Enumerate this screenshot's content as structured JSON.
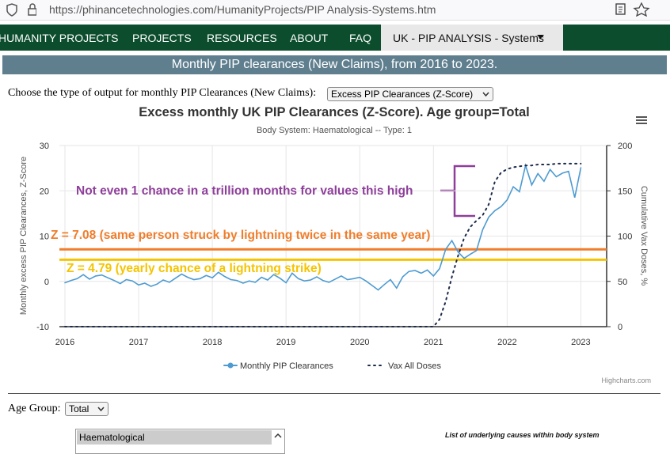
{
  "browser": {
    "url": "https://phinancetechnologies.com/HumanityProjects/PIP Analysis-Systems.htm"
  },
  "nav": {
    "items": [
      "HUMANITY PROJECTS",
      "PROJECTS",
      "RESOURCES",
      "ABOUT",
      "FAQ"
    ],
    "active": "UK - PIP ANALYSIS - Systems"
  },
  "banner": "Monthly PIP clearances (New Claims), from 2016 to 2023.",
  "output_label": "Choose the type of output for monthly PIP Clearances (New Claims):",
  "output_select": "Excess PIP Clearances (Z-Score)",
  "chart_data": {
    "type": "line",
    "title": "Excess monthly UK PIP Clearances (Z-Score). Age group=Total",
    "subtitle": "Body System: Haematological -- Type: 1",
    "ylabel": "Monthly excess PIP Clearances, Z-Score",
    "y2label": "Cumulative Vax Doses, %",
    "credits": "Highcharts.com",
    "grid": true,
    "xlim": [
      2015.925,
      2023.35
    ],
    "xticks": [
      2016,
      2017,
      2018,
      2019,
      2020,
      2021,
      2022,
      2023
    ],
    "ylim": [
      -10,
      30
    ],
    "yticks": [
      -10,
      0,
      10,
      20,
      30
    ],
    "y2lim": [
      0,
      200
    ],
    "y2ticks": [
      0,
      50,
      100,
      150,
      200
    ],
    "x": [
      2016,
      2016.083,
      2016.167,
      2016.25,
      2016.333,
      2016.417,
      2016.5,
      2016.583,
      2016.667,
      2016.75,
      2016.833,
      2016.917,
      2017,
      2017.083,
      2017.167,
      2017.25,
      2017.333,
      2017.417,
      2017.5,
      2017.583,
      2017.667,
      2017.75,
      2017.833,
      2017.917,
      2018,
      2018.083,
      2018.167,
      2018.25,
      2018.333,
      2018.417,
      2018.5,
      2018.583,
      2018.667,
      2018.75,
      2018.833,
      2018.917,
      2019,
      2019.083,
      2019.167,
      2019.25,
      2019.333,
      2019.417,
      2019.5,
      2019.583,
      2019.667,
      2019.75,
      2019.833,
      2019.917,
      2020,
      2020.083,
      2020.167,
      2020.25,
      2020.333,
      2020.417,
      2020.5,
      2020.583,
      2020.667,
      2020.75,
      2020.833,
      2020.917,
      2021,
      2021.083,
      2021.167,
      2021.25,
      2021.333,
      2021.417,
      2021.5,
      2021.583,
      2021.667,
      2021.75,
      2021.833,
      2021.917,
      2022,
      2022.083,
      2022.167,
      2022.25,
      2022.333,
      2022.417,
      2022.5,
      2022.583,
      2022.667,
      2022.75,
      2022.833,
      2022.917,
      2023
    ],
    "series": [
      {
        "name": "Monthly PIP Clearances",
        "color": "#4d9bd1",
        "values": [
          -0.3,
          0.2,
          0.6,
          1.5,
          0.5,
          1.2,
          1.4,
          0.8,
          0.2,
          -0.5,
          0.4,
          0.1,
          -0.8,
          -0.4,
          -1.1,
          -0.6,
          0.3,
          -0.2,
          0.7,
          1.6,
          0.9,
          0.4,
          0.6,
          1.3,
          0.8,
          2.0,
          1.1,
          0.4,
          0.2,
          -0.4,
          0.1,
          -0.2,
          0.9,
          0.3,
          1.5,
          0.7,
          -0.3,
          1.8,
          0.6,
          0.1,
          0.3,
          1.0,
          0.2,
          -0.2,
          0.5,
          1.2,
          0.4,
          0.6,
          0.9,
          0.1,
          -0.9,
          -1.9,
          -0.7,
          0.4,
          -1.5,
          1.0,
          2.2,
          2.4,
          1.8,
          2.5,
          1.2,
          2.8,
          7.1,
          9.0,
          6.5,
          5.1,
          6.0,
          6.8,
          11.4,
          14.2,
          15.6,
          16.5,
          18.0,
          20.9,
          19.8,
          25.6,
          21.3,
          23.8,
          22.1,
          24.7,
          23.1,
          23.9,
          24.3,
          18.5,
          25.1
        ]
      },
      {
        "name": "Vax All Doses",
        "color": "#1c2b4a",
        "axis": "y2",
        "dash": "dotted",
        "values": [
          0,
          0,
          0,
          0,
          0,
          0,
          0,
          0,
          0,
          0,
          0,
          0,
          0,
          0,
          0,
          0,
          0,
          0,
          0,
          0,
          0,
          0,
          0,
          0,
          0,
          0,
          0,
          0,
          0,
          0,
          0,
          0,
          0,
          0,
          0,
          0,
          0,
          0,
          0,
          0,
          0,
          0,
          0,
          0,
          0,
          0,
          0,
          0,
          0,
          0,
          0,
          0,
          0,
          0,
          0,
          0,
          0,
          0,
          0,
          0,
          0,
          8,
          28,
          55,
          78,
          98,
          110,
          117,
          123,
          135,
          160,
          170,
          174,
          176,
          177,
          178,
          178,
          179,
          179,
          179,
          180,
          180,
          180,
          180,
          180
        ]
      }
    ],
    "annotations": [
      {
        "text": "Not even 1 chance in a trillion months for values this high",
        "color": "#8e3f9a"
      }
    ],
    "reference_lines": [
      {
        "value": 7.08,
        "label": "Z = 7.08 (same person struck by lightning twice in the same year)",
        "color": "#f07d2a"
      },
      {
        "value": 4.79,
        "label": "Z = 4.79 (yearly chance of a lightning strike)",
        "color": "#f5c400"
      }
    ]
  },
  "age_group_label": "Age Group:",
  "age_select": "Total",
  "body_system_list": [
    "Haematological"
  ],
  "causes_title": "List of underlying causes within body system"
}
